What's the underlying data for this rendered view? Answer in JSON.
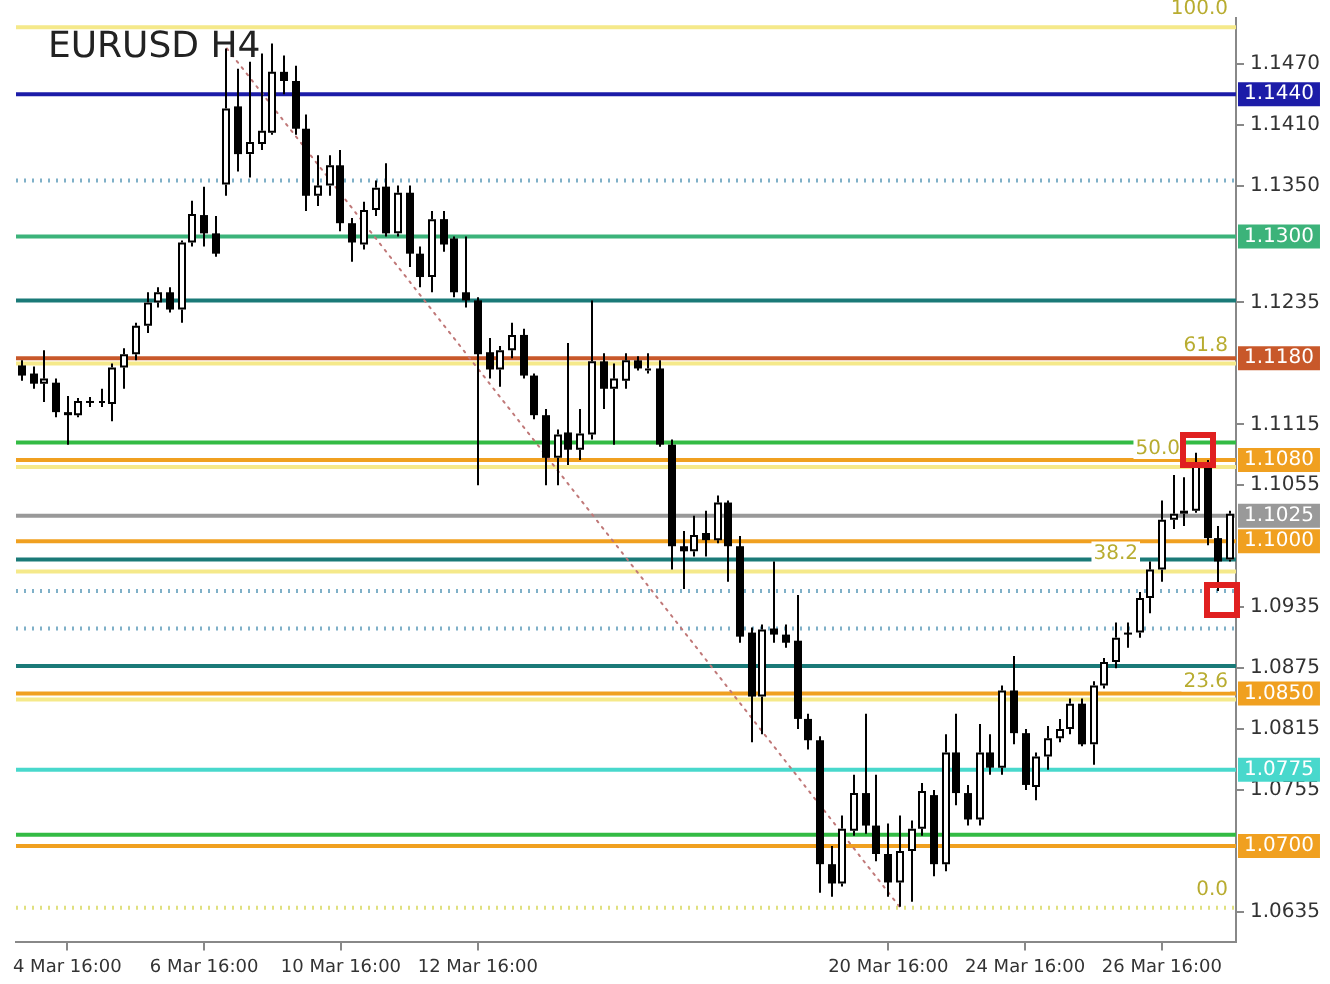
{
  "chart_data": {
    "type": "candlestick",
    "title": "EURUSD H4",
    "categories": [
      null,
      null,
      null,
      null,
      "4 Mar 16:00",
      null,
      null,
      null,
      null,
      null,
      null,
      null,
      null,
      null,
      null,
      null,
      "6 Mar 16:00",
      null,
      null,
      null,
      null,
      null,
      null,
      null,
      null,
      null,
      null,
      null,
      "10 Mar 16:00",
      null,
      null,
      null,
      null,
      null,
      null,
      null,
      null,
      null,
      null,
      null,
      "12 Mar 16:00",
      null,
      null,
      null,
      null,
      null,
      null,
      null,
      null,
      null,
      null,
      null,
      null,
      null,
      null,
      null,
      null,
      null,
      null,
      null,
      null,
      null,
      null,
      null,
      null,
      null,
      null,
      null,
      null,
      null,
      null,
      null,
      null,
      null,
      null,
      null,
      "20 Mar 16:00",
      null,
      null,
      null,
      null,
      null,
      null,
      null,
      null,
      null,
      null,
      null,
      "24 Mar 16:00",
      null,
      null,
      null,
      null,
      null,
      null,
      null,
      null,
      null,
      null,
      null,
      "26 Mar 16:00",
      null,
      null,
      null,
      null,
      null,
      null
    ],
    "ohlc": [
      [
        1.1173,
        1.1178,
        1.1158,
        1.1163
      ],
      [
        1.1165,
        1.1172,
        1.115,
        1.1155
      ],
      [
        1.1155,
        1.1188,
        1.1137,
        1.116
      ],
      [
        1.1156,
        1.116,
        1.1122,
        1.1127
      ],
      [
        1.1127,
        1.1143,
        1.1095,
        1.1124
      ],
      [
        1.1124,
        1.1141,
        1.1122,
        1.1138
      ],
      [
        1.1138,
        1.1142,
        1.1132,
        1.1137
      ],
      [
        1.1137,
        1.115,
        1.1132,
        1.1138
      ],
      [
        1.1135,
        1.1175,
        1.1118,
        1.1171
      ],
      [
        1.1171,
        1.119,
        1.115,
        1.1184
      ],
      [
        1.1184,
        1.1215,
        1.1178,
        1.1212
      ],
      [
        1.1212,
        1.1245,
        1.1205,
        1.1235
      ],
      [
        1.1235,
        1.125,
        1.123,
        1.1245
      ],
      [
        1.1245,
        1.125,
        1.1225,
        1.1228
      ],
      [
        1.1228,
        1.1296,
        1.1215,
        1.1294
      ],
      [
        1.1294,
        1.1335,
        1.129,
        1.1322
      ],
      [
        1.1321,
        1.1349,
        1.129,
        1.1303
      ],
      [
        1.1303,
        1.132,
        1.128,
        1.1283
      ],
      [
        1.1351,
        1.1485,
        1.134,
        1.1426
      ],
      [
        1.1428,
        1.1465,
        1.1364,
        1.1381
      ],
      [
        1.1381,
        1.1472,
        1.1358,
        1.1393
      ],
      [
        1.1391,
        1.148,
        1.1385,
        1.1404
      ],
      [
        1.1402,
        1.149,
        1.14,
        1.1462
      ],
      [
        1.1462,
        1.1478,
        1.144,
        1.1453
      ],
      [
        1.1453,
        1.1468,
        1.14,
        1.1406
      ],
      [
        1.1406,
        1.142,
        1.1325,
        1.134
      ],
      [
        1.134,
        1.138,
        1.133,
        1.135
      ],
      [
        1.135,
        1.138,
        1.134,
        1.137
      ],
      [
        1.137,
        1.1385,
        1.1305,
        1.1313
      ],
      [
        1.1313,
        1.1318,
        1.1275,
        1.1294
      ],
      [
        1.1292,
        1.1334,
        1.1287,
        1.1326
      ],
      [
        1.1326,
        1.1355,
        1.132,
        1.1348
      ],
      [
        1.1349,
        1.1372,
        1.13,
        1.1303
      ],
      [
        1.1303,
        1.135,
        1.13,
        1.1343
      ],
      [
        1.1343,
        1.135,
        1.127,
        1.1283
      ],
      [
        1.1283,
        1.129,
        1.125,
        1.126
      ],
      [
        1.126,
        1.1325,
        1.1245,
        1.1317
      ],
      [
        1.1317,
        1.1325,
        1.1285,
        1.1292
      ],
      [
        1.1298,
        1.13,
        1.124,
        1.1245
      ],
      [
        1.1245,
        1.13,
        1.123,
        1.1237
      ],
      [
        1.1237,
        1.124,
        1.1055,
        1.1184
      ],
      [
        1.1186,
        1.12,
        1.116,
        1.1169
      ],
      [
        1.1169,
        1.1192,
        1.1152,
        1.1188
      ],
      [
        1.1188,
        1.1215,
        1.118,
        1.1203
      ],
      [
        1.1203,
        1.1209,
        1.116,
        1.1163
      ],
      [
        1.1163,
        1.1165,
        1.112,
        1.1124
      ],
      [
        1.1124,
        1.113,
        1.1055,
        1.1082
      ],
      [
        1.1082,
        1.111,
        1.1055,
        1.1105
      ],
      [
        1.1107,
        1.1195,
        1.1075,
        1.109
      ],
      [
        1.109,
        1.113,
        1.108,
        1.1106
      ],
      [
        1.1105,
        1.1237,
        1.11,
        1.1177
      ],
      [
        1.1177,
        1.1185,
        1.113,
        1.115
      ],
      [
        1.115,
        1.1175,
        1.1095,
        1.116
      ],
      [
        1.1158,
        1.1185,
        1.115,
        1.1178
      ],
      [
        1.1178,
        1.1182,
        1.1168,
        1.117
      ],
      [
        1.117,
        1.1185,
        1.1165,
        1.117
      ],
      [
        1.117,
        1.1178,
        1.1093,
        1.1095
      ],
      [
        1.1095,
        1.11,
        1.0972,
        1.0995
      ],
      [
        1.0995,
        1.101,
        1.0953,
        1.099
      ],
      [
        1.099,
        1.1025,
        1.0985,
        1.1006
      ],
      [
        1.1008,
        1.103,
        1.0985,
        1.1001
      ],
      [
        1.1001,
        1.1045,
        1.0998,
        1.1038
      ],
      [
        1.1038,
        1.104,
        1.096,
        1.0995
      ],
      [
        1.0995,
        1.1005,
        1.09,
        1.0906
      ],
      [
        1.091,
        1.0915,
        1.0802,
        1.0847
      ],
      [
        1.0847,
        1.0918,
        1.081,
        1.0913
      ],
      [
        1.0914,
        1.098,
        1.09,
        1.0908
      ],
      [
        1.0908,
        1.0918,
        1.0895,
        1.09
      ],
      [
        1.0902,
        1.0947,
        1.0815,
        1.0825
      ],
      [
        1.0825,
        1.083,
        1.0795,
        1.0804
      ],
      [
        1.0804,
        1.0808,
        1.0654,
        1.0682
      ],
      [
        1.0682,
        1.07,
        1.065,
        1.0663
      ],
      [
        1.0663,
        1.073,
        1.066,
        1.0717
      ],
      [
        1.0715,
        1.077,
        1.071,
        1.0752
      ],
      [
        1.0752,
        1.083,
        1.0712,
        1.072
      ],
      [
        1.072,
        1.077,
        1.0685,
        1.0692
      ],
      [
        1.0692,
        1.0722,
        1.065,
        1.0664
      ],
      [
        1.0664,
        1.073,
        1.064,
        1.0695
      ],
      [
        1.0695,
        1.0725,
        1.0645,
        1.0717
      ],
      [
        1.0717,
        1.0762,
        1.071,
        1.0754
      ],
      [
        1.075,
        1.0755,
        1.067,
        1.0682
      ],
      [
        1.0682,
        1.081,
        1.0675,
        1.0792
      ],
      [
        1.0792,
        1.083,
        1.074,
        1.0752
      ],
      [
        1.0752,
        1.076,
        1.072,
        1.0726
      ],
      [
        1.0726,
        1.082,
        1.072,
        1.0792
      ],
      [
        1.0792,
        1.081,
        1.077,
        1.0777
      ],
      [
        1.0777,
        1.0858,
        1.077,
        1.0853
      ],
      [
        1.0853,
        1.0887,
        1.08,
        1.0811
      ],
      [
        1.0811,
        1.0815,
        1.0755,
        1.076
      ],
      [
        1.0758,
        1.0792,
        1.0745,
        1.0788
      ],
      [
        1.0788,
        1.0818,
        1.0775,
        1.0806
      ],
      [
        1.0806,
        1.0825,
        1.0802,
        1.0815
      ],
      [
        1.0815,
        1.0845,
        1.081,
        1.084
      ],
      [
        1.084,
        1.0845,
        1.0798,
        1.08
      ],
      [
        1.08,
        1.0862,
        1.078,
        1.0858
      ],
      [
        1.0858,
        1.0885,
        1.0855,
        1.0881
      ],
      [
        1.0881,
        1.092,
        1.0875,
        1.0905
      ],
      [
        1.091,
        1.092,
        1.0895,
        1.0908
      ],
      [
        1.091,
        1.095,
        1.0905,
        1.0944
      ],
      [
        1.0944,
        1.098,
        1.0929,
        1.0972
      ],
      [
        1.0972,
        1.104,
        1.096,
        1.1021
      ],
      [
        1.1021,
        1.1065,
        1.1012,
        1.1027
      ],
      [
        1.1027,
        1.1063,
        1.1015,
        1.103
      ],
      [
        1.103,
        1.1087,
        1.1028,
        1.1075
      ],
      [
        1.1075,
        1.108,
        1.0996,
        1.1003
      ],
      [
        1.1003,
        1.1015,
        1.0951,
        1.098
      ],
      [
        1.0982,
        1.103,
        1.098,
        1.1027
      ]
    ],
    "series": [
      {
        "type": "line",
        "color": "#c07878",
        "line_style": "dotted",
        "values": [
          null,
          null,
          null,
          null,
          null,
          null,
          null,
          null,
          null,
          null,
          null,
          null,
          null,
          null,
          null,
          null,
          null,
          null,
          1.1485,
          null,
          null,
          null,
          null,
          null,
          null,
          null,
          null,
          null,
          null,
          null,
          null,
          null,
          null,
          null,
          null,
          null,
          null,
          null,
          null,
          null,
          null,
          null,
          null,
          null,
          null,
          null,
          null,
          null,
          null,
          null,
          null,
          null,
          null,
          null,
          null,
          null,
          null,
          null,
          null,
          null,
          null,
          null,
          null,
          null,
          null,
          null,
          null,
          null,
          null,
          null,
          null,
          null,
          null,
          null,
          null,
          null,
          null,
          1.064,
          null,
          null,
          null,
          null,
          null,
          null,
          null,
          null,
          null,
          null,
          null,
          null,
          null,
          null,
          null,
          null,
          null,
          null,
          null,
          null,
          null,
          null,
          null,
          null,
          null,
          null,
          null,
          null,
          null
        ]
      }
    ],
    "ylim": [
      1.0605,
      1.1515
    ],
    "yticks": [
      1.0635,
      1.0755,
      1.0815,
      1.0875,
      1.0935,
      1.1055,
      1.1115,
      1.1235,
      {
        "value": 1.135,
        "label": "1.1350"
      },
      {
        "value": 1.141,
        "label": "1.1410"
      },
      {
        "value": 1.147,
        "label": "1.1470"
      }
    ],
    "annotations": [
      {
        "text": "100.0",
        "y": 1.1506
      },
      {
        "text": "61.8",
        "y": 1.1175
      },
      {
        "text": "50.0",
        "y": 1.1073
      },
      {
        "text": "38.2",
        "y": 1.097
      },
      {
        "text": "23.6",
        "y": 1.0844
      },
      {
        "text": "0.0",
        "y": 1.0639
      }
    ],
    "ref_lines": [
      {
        "axis": "y",
        "value": 1.1506,
        "color": "#f5e98a"
      },
      {
        "axis": "y",
        "value": 1.144,
        "label": "1.1440",
        "color": "#1c1ca8"
      },
      {
        "axis": "y",
        "value": 1.1355,
        "color": "#7fb0c8",
        "line_style": "dotted"
      },
      {
        "axis": "y",
        "value": 1.13,
        "label": "1.1300",
        "color": "#3cb37a"
      },
      {
        "axis": "y",
        "value": 1.1237,
        "color": "#1a7a78"
      },
      {
        "axis": "y",
        "value": 1.118,
        "label": "1.1180",
        "color": "#c8582a"
      },
      {
        "axis": "y",
        "value": 1.1175,
        "color": "#f5e98a"
      },
      {
        "axis": "y",
        "value": 1.1097,
        "color": "#33bb44"
      },
      {
        "axis": "y",
        "value": 1.108,
        "label": "1.1080",
        "color": "#f0a020"
      },
      {
        "axis": "y",
        "value": 1.1073,
        "color": "#f5e98a"
      },
      {
        "axis": "y",
        "value": 1.1025,
        "label": "1.1025",
        "color": "#999999"
      },
      {
        "axis": "y",
        "value": 1.1,
        "label": "1.1000",
        "color": "#f0a020"
      },
      {
        "axis": "y",
        "value": 1.0982,
        "color": "#1a7a78"
      },
      {
        "axis": "y",
        "value": 1.097,
        "color": "#f5e98a"
      },
      {
        "axis": "y",
        "value": 1.0951,
        "color": "#7fb0c8",
        "line_style": "dotted"
      },
      {
        "axis": "y",
        "value": 1.0914,
        "color": "#7fb0c8",
        "line_style": "dotted"
      },
      {
        "axis": "y",
        "value": 1.0877,
        "color": "#1a7a78"
      },
      {
        "axis": "y",
        "value": 1.085,
        "label": "1.0850",
        "color": "#f0a020"
      },
      {
        "axis": "y",
        "value": 1.0844,
        "color": "#f5e98a"
      },
      {
        "axis": "y",
        "value": 1.0775,
        "label": "1.0775",
        "color": "#48d8cc"
      },
      {
        "axis": "y",
        "value": 1.0711,
        "color": "#33bb44"
      },
      {
        "axis": "y",
        "value": 1.07,
        "label": "1.0700",
        "color": "#f0a020"
      },
      {
        "axis": "y",
        "value": 1.0639,
        "color": "#e0e080",
        "line_style": "dotted"
      }
    ],
    "grid": false,
    "legend": false
  }
}
